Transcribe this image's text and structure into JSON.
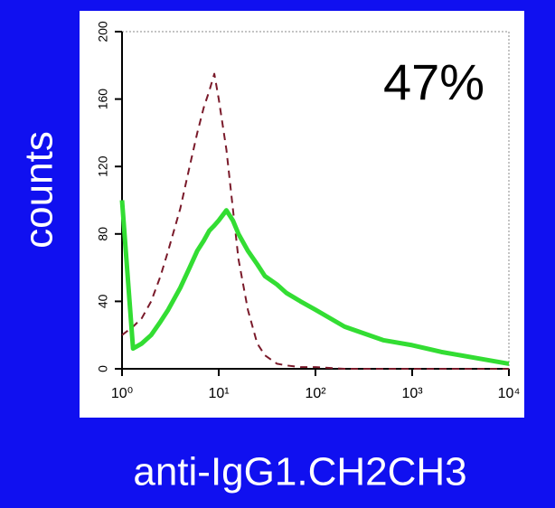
{
  "chart_data": {
    "type": "line",
    "y_label": "counts",
    "x_label": "anti-IgG1.CH2CH3",
    "annotation": "47%",
    "x_scale": "log",
    "x": [
      1,
      1.3,
      1.6,
      2,
      2.5,
      3,
      4,
      5,
      6,
      7,
      8,
      9,
      10,
      12,
      14,
      16,
      20,
      25,
      30,
      40,
      50,
      70,
      100,
      200,
      500,
      1000,
      2000,
      5000,
      10000
    ],
    "xlim": [
      1,
      10000
    ],
    "xticks": [
      {
        "value": 1,
        "label": "10⁰"
      },
      {
        "value": 10,
        "label": "10¹"
      },
      {
        "value": 100,
        "label": "10²"
      },
      {
        "value": 1000,
        "label": "10³"
      },
      {
        "value": 10000,
        "label": "10⁴"
      }
    ],
    "ylim": [
      0,
      200
    ],
    "yticks": [
      0,
      40,
      80,
      120,
      160,
      200
    ],
    "series": [
      {
        "color": "#7a1a2a",
        "line_style": "dashed",
        "values": [
          20,
          25,
          30,
          40,
          55,
          70,
          95,
          120,
          140,
          155,
          165,
          175,
          160,
          130,
          95,
          65,
          35,
          15,
          8,
          3,
          2,
          1,
          1,
          0,
          0,
          0,
          0,
          0,
          0
        ]
      },
      {
        "color": "#33dd33",
        "line_style": "solid",
        "values": [
          100,
          12,
          15,
          20,
          28,
          35,
          48,
          60,
          70,
          76,
          82,
          85,
          88,
          94,
          88,
          80,
          70,
          62,
          55,
          50,
          45,
          40,
          35,
          25,
          17,
          14,
          10,
          6,
          3
        ]
      }
    ]
  }
}
